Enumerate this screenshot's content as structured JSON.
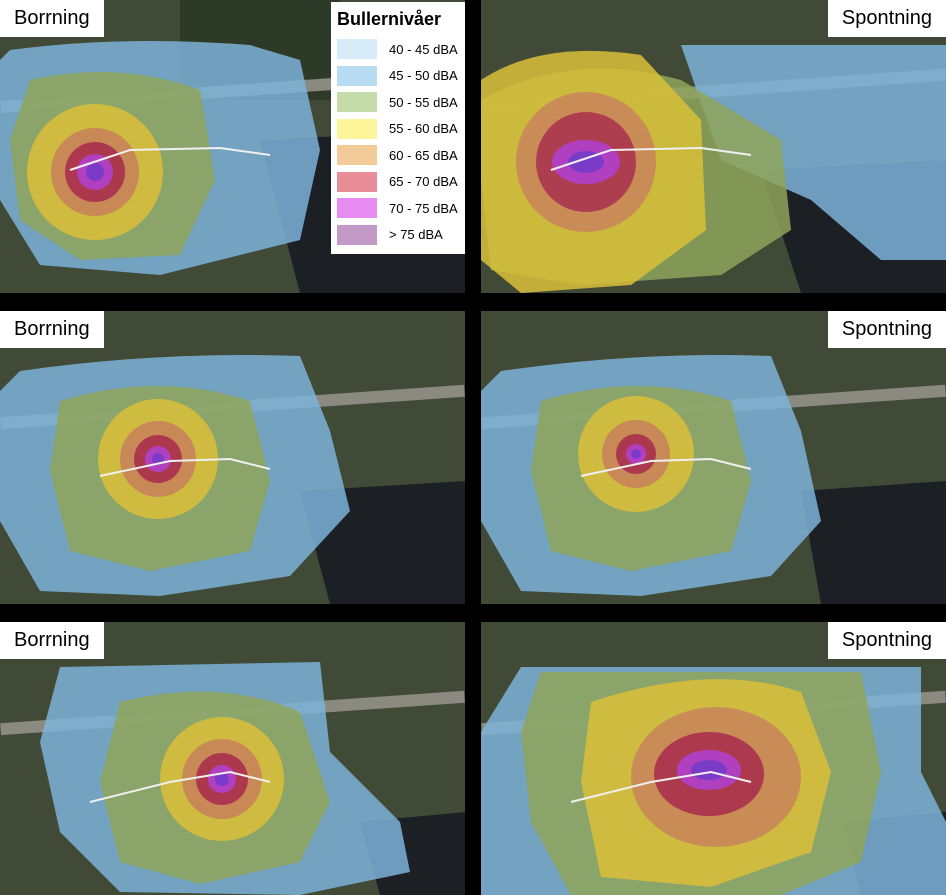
{
  "legend": {
    "title": "Bullernivåer",
    "items": [
      {
        "label": "40 - 45 dBA",
        "color": "#d8ecf8"
      },
      {
        "label": "45 - 50 dBA",
        "color": "#b7dcf2"
      },
      {
        "label": "50 - 55 dBA",
        "color": "#c5dcaa"
      },
      {
        "label": "55 - 60 dBA",
        "color": "#fdf59a"
      },
      {
        "label": "60 - 65 dBA",
        "color": "#f3cb98"
      },
      {
        "label": "65 - 70 dBA",
        "color": "#e98d99"
      },
      {
        "label": "70 - 75 dBA",
        "color": "#e58bf2"
      },
      {
        "label": "> 75 dBA",
        "color": "#c39ac7"
      }
    ]
  },
  "panels": [
    {
      "label": "Borrning"
    },
    {
      "label": "Spontning"
    },
    {
      "label": "Borrning"
    },
    {
      "label": "Spontning"
    },
    {
      "label": "Borrning"
    },
    {
      "label": "Spontning"
    }
  ],
  "overlay_colors": {
    "blue": "#7cb3d9",
    "green": "#8ea45a",
    "yellow": "#d9c038",
    "orange": "#c8845a",
    "red": "#a8304e",
    "magenta": "#b040c0",
    "purple": "#7a3cc8",
    "water": "#1c1f24",
    "vegetation": "#3f4a33",
    "urban": "#6e6a62"
  }
}
